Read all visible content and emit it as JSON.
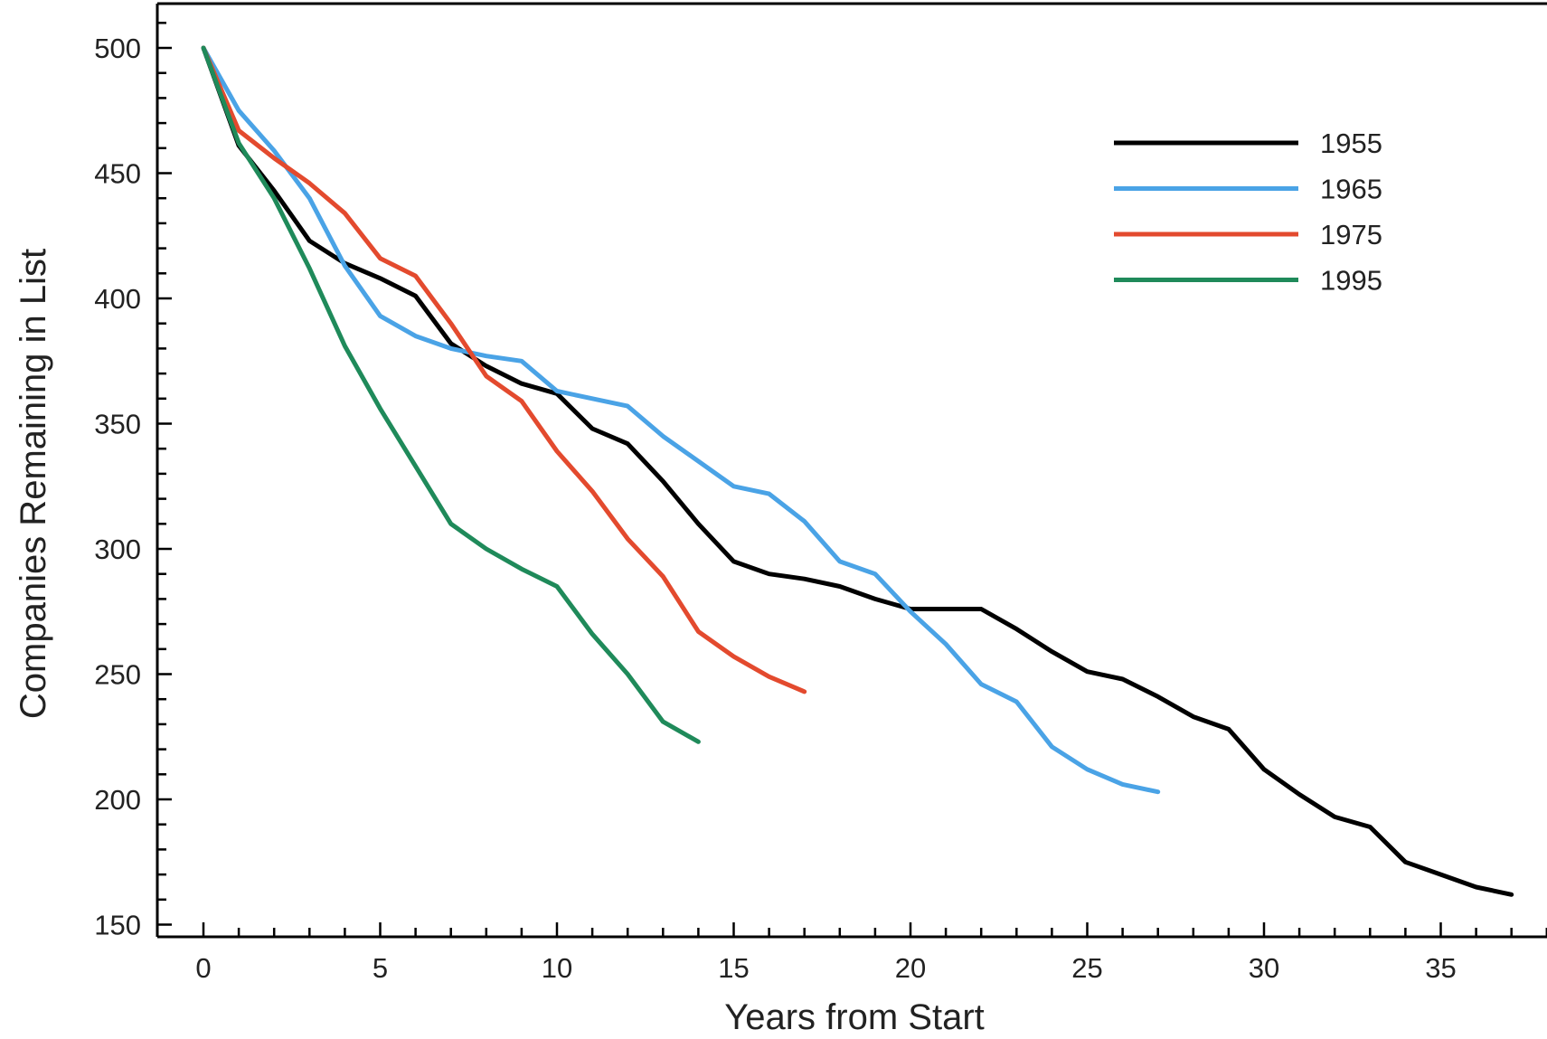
{
  "chart_data": {
    "type": "line",
    "title": "",
    "xlabel": "Years from Start",
    "ylabel": "Companies Remaining in List",
    "xlim": [
      -1.2,
      38.5
    ],
    "ylim": [
      145,
      518
    ],
    "x_ticks": [
      0,
      5,
      10,
      15,
      20,
      25,
      30,
      35
    ],
    "y_ticks": [
      150,
      200,
      250,
      300,
      350,
      400,
      450,
      500
    ],
    "grid": false,
    "legend_position": "top-right",
    "series": [
      {
        "name": "1955",
        "color": "#000000",
        "x": [
          0,
          1,
          2,
          3,
          4,
          5,
          6,
          7,
          8,
          9,
          10,
          11,
          12,
          13,
          14,
          15,
          16,
          17,
          18,
          19,
          20,
          21,
          22,
          23,
          24,
          25,
          26,
          27,
          28,
          29,
          30,
          31,
          32,
          33,
          34,
          35,
          36,
          37
        ],
        "values": [
          500,
          461,
          443,
          423,
          414,
          408,
          401,
          382,
          373,
          366,
          362,
          348,
          342,
          327,
          310,
          295,
          290,
          288,
          285,
          280,
          276,
          276,
          276,
          268,
          259,
          251,
          248,
          241,
          233,
          228,
          212,
          202,
          193,
          189,
          175,
          170,
          165,
          162
        ]
      },
      {
        "name": "1965",
        "color": "#4aa3e6",
        "x": [
          0,
          1,
          2,
          3,
          4,
          5,
          6,
          7,
          8,
          9,
          10,
          11,
          12,
          13,
          14,
          15,
          16,
          17,
          18,
          19,
          20,
          21,
          22,
          23,
          24,
          25,
          26,
          27
        ],
        "values": [
          500,
          475,
          459,
          440,
          413,
          393,
          385,
          380,
          377,
          375,
          363,
          360,
          357,
          345,
          335,
          325,
          322,
          311,
          295,
          290,
          275,
          262,
          246,
          239,
          221,
          212,
          206,
          203
        ]
      },
      {
        "name": "1975",
        "color": "#e34a2e",
        "x": [
          0,
          1,
          2,
          3,
          4,
          5,
          6,
          7,
          8,
          9,
          10,
          11,
          12,
          13,
          14,
          15,
          16,
          17
        ],
        "values": [
          500,
          467,
          456,
          446,
          434,
          416,
          409,
          390,
          369,
          359,
          339,
          323,
          304,
          289,
          267,
          257,
          249,
          243
        ]
      },
      {
        "name": "1995",
        "color": "#1f8a5a",
        "x": [
          0,
          1,
          2,
          3,
          4,
          5,
          6,
          7,
          8,
          9,
          10,
          11,
          12,
          13,
          14
        ],
        "values": [
          500,
          462,
          440,
          412,
          381,
          356,
          333,
          310,
          300,
          292,
          285,
          266,
          250,
          231,
          223
        ]
      }
    ]
  }
}
